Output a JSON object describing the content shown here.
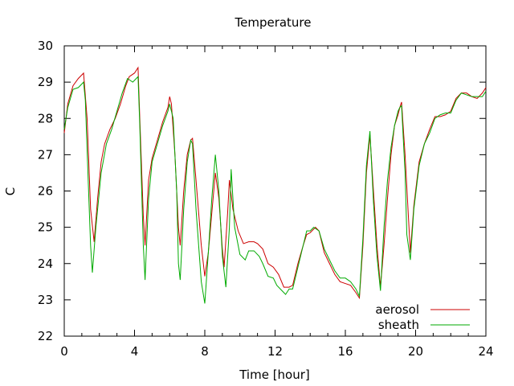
{
  "chart_data": {
    "type": "line",
    "title": "Temperature",
    "xlabel": "Time [hour]",
    "ylabel": "C",
    "xlim": [
      0,
      24
    ],
    "ylim": [
      22,
      30
    ],
    "xticks": [
      0,
      4,
      8,
      12,
      16,
      20,
      24
    ],
    "yticks": [
      22,
      23,
      24,
      25,
      26,
      27,
      28,
      29,
      30
    ],
    "grid": false,
    "legend_position": "bottom-right",
    "series": [
      {
        "name": "aerosol",
        "color": "#cc0000",
        "points": [
          [
            0,
            27.6
          ],
          [
            0.2,
            28.4
          ],
          [
            0.5,
            28.9
          ],
          [
            0.8,
            29.1
          ],
          [
            1.1,
            29.25
          ],
          [
            1.3,
            28.0
          ],
          [
            1.5,
            25.5
          ],
          [
            1.7,
            24.6
          ],
          [
            1.9,
            25.8
          ],
          [
            2.1,
            26.8
          ],
          [
            2.3,
            27.3
          ],
          [
            2.6,
            27.7
          ],
          [
            2.9,
            28.0
          ],
          [
            3.2,
            28.4
          ],
          [
            3.5,
            28.9
          ],
          [
            3.7,
            29.15
          ],
          [
            4.0,
            29.25
          ],
          [
            4.2,
            29.4
          ],
          [
            4.3,
            28.0
          ],
          [
            4.5,
            25.3
          ],
          [
            4.6,
            24.5
          ],
          [
            4.8,
            26.3
          ],
          [
            5.0,
            26.9
          ],
          [
            5.3,
            27.4
          ],
          [
            5.6,
            27.9
          ],
          [
            5.9,
            28.3
          ],
          [
            6.0,
            28.6
          ],
          [
            6.1,
            28.4
          ],
          [
            6.3,
            27.0
          ],
          [
            6.5,
            25.0
          ],
          [
            6.6,
            24.5
          ],
          [
            6.8,
            26.0
          ],
          [
            7.0,
            27.0
          ],
          [
            7.2,
            27.4
          ],
          [
            7.3,
            27.45
          ],
          [
            7.5,
            26.3
          ],
          [
            7.8,
            24.5
          ],
          [
            8.0,
            23.65
          ],
          [
            8.2,
            24.3
          ],
          [
            8.4,
            25.4
          ],
          [
            8.6,
            26.5
          ],
          [
            8.8,
            25.8
          ],
          [
            9.0,
            24.4
          ],
          [
            9.1,
            23.9
          ],
          [
            9.3,
            25.4
          ],
          [
            9.4,
            26.3
          ],
          [
            9.6,
            25.5
          ],
          [
            9.9,
            24.9
          ],
          [
            10.2,
            24.55
          ],
          [
            10.5,
            24.6
          ],
          [
            10.8,
            24.6
          ],
          [
            11.0,
            24.55
          ],
          [
            11.3,
            24.4
          ],
          [
            11.6,
            24.0
          ],
          [
            11.9,
            23.9
          ],
          [
            12.2,
            23.7
          ],
          [
            12.5,
            23.35
          ],
          [
            12.8,
            23.35
          ],
          [
            13.0,
            23.4
          ],
          [
            13.3,
            24.0
          ],
          [
            13.6,
            24.5
          ],
          [
            13.8,
            24.8
          ],
          [
            14.0,
            24.85
          ],
          [
            14.3,
            25.0
          ],
          [
            14.5,
            24.9
          ],
          [
            14.8,
            24.3
          ],
          [
            15.1,
            24.0
          ],
          [
            15.4,
            23.7
          ],
          [
            15.7,
            23.5
          ],
          [
            16.0,
            23.45
          ],
          [
            16.3,
            23.4
          ],
          [
            16.6,
            23.2
          ],
          [
            16.8,
            23.05
          ],
          [
            17.0,
            24.5
          ],
          [
            17.2,
            26.5
          ],
          [
            17.4,
            27.55
          ],
          [
            17.6,
            26.0
          ],
          [
            17.8,
            24.5
          ],
          [
            18.0,
            23.35
          ],
          [
            18.2,
            24.5
          ],
          [
            18.4,
            25.8
          ],
          [
            18.6,
            27.0
          ],
          [
            18.8,
            27.8
          ],
          [
            19.0,
            28.1
          ],
          [
            19.1,
            28.3
          ],
          [
            19.2,
            28.45
          ],
          [
            19.4,
            27.0
          ],
          [
            19.6,
            25.2
          ],
          [
            19.7,
            24.3
          ],
          [
            19.9,
            25.6
          ],
          [
            20.2,
            26.8
          ],
          [
            20.5,
            27.3
          ],
          [
            20.8,
            27.7
          ],
          [
            21.1,
            28.05
          ],
          [
            21.4,
            28.05
          ],
          [
            21.7,
            28.1
          ],
          [
            22.0,
            28.2
          ],
          [
            22.3,
            28.55
          ],
          [
            22.6,
            28.7
          ],
          [
            22.9,
            28.7
          ],
          [
            23.2,
            28.6
          ],
          [
            23.5,
            28.55
          ],
          [
            23.8,
            28.7
          ],
          [
            24.0,
            28.85
          ]
        ]
      },
      {
        "name": "sheath",
        "color": "#00aa00",
        "points": [
          [
            0,
            27.7
          ],
          [
            0.2,
            28.3
          ],
          [
            0.5,
            28.8
          ],
          [
            0.8,
            28.85
          ],
          [
            1.1,
            29.0
          ],
          [
            1.2,
            28.5
          ],
          [
            1.4,
            25.8
          ],
          [
            1.5,
            24.5
          ],
          [
            1.6,
            23.75
          ],
          [
            1.8,
            25.0
          ],
          [
            2.1,
            26.5
          ],
          [
            2.4,
            27.3
          ],
          [
            2.7,
            27.7
          ],
          [
            3.0,
            28.2
          ],
          [
            3.3,
            28.7
          ],
          [
            3.6,
            29.1
          ],
          [
            3.9,
            29.0
          ],
          [
            4.2,
            29.15
          ],
          [
            4.3,
            27.8
          ],
          [
            4.5,
            24.5
          ],
          [
            4.6,
            23.55
          ],
          [
            4.8,
            25.8
          ],
          [
            5.0,
            26.8
          ],
          [
            5.3,
            27.3
          ],
          [
            5.6,
            27.8
          ],
          [
            5.9,
            28.2
          ],
          [
            6.0,
            28.4
          ],
          [
            6.2,
            28.0
          ],
          [
            6.4,
            26.0
          ],
          [
            6.5,
            24.0
          ],
          [
            6.6,
            23.55
          ],
          [
            6.8,
            25.5
          ],
          [
            7.0,
            26.8
          ],
          [
            7.2,
            27.4
          ],
          [
            7.3,
            27.3
          ],
          [
            7.5,
            25.5
          ],
          [
            7.8,
            23.5
          ],
          [
            8.0,
            22.9
          ],
          [
            8.2,
            24.3
          ],
          [
            8.4,
            25.8
          ],
          [
            8.6,
            27.0
          ],
          [
            8.8,
            26.0
          ],
          [
            9.0,
            24.2
          ],
          [
            9.2,
            23.35
          ],
          [
            9.4,
            25.0
          ],
          [
            9.5,
            26.6
          ],
          [
            9.7,
            25.0
          ],
          [
            10.0,
            24.25
          ],
          [
            10.3,
            24.1
          ],
          [
            10.5,
            24.35
          ],
          [
            10.8,
            24.35
          ],
          [
            11.1,
            24.2
          ],
          [
            11.3,
            24.0
          ],
          [
            11.6,
            23.65
          ],
          [
            11.9,
            23.6
          ],
          [
            12.1,
            23.4
          ],
          [
            12.4,
            23.25
          ],
          [
            12.6,
            23.15
          ],
          [
            12.8,
            23.3
          ],
          [
            13.0,
            23.3
          ],
          [
            13.3,
            23.9
          ],
          [
            13.6,
            24.5
          ],
          [
            13.8,
            24.9
          ],
          [
            14.0,
            24.9
          ],
          [
            14.2,
            25.0
          ],
          [
            14.5,
            24.9
          ],
          [
            14.8,
            24.4
          ],
          [
            15.1,
            24.1
          ],
          [
            15.4,
            23.8
          ],
          [
            15.7,
            23.6
          ],
          [
            16.0,
            23.6
          ],
          [
            16.3,
            23.5
          ],
          [
            16.6,
            23.3
          ],
          [
            16.8,
            23.1
          ],
          [
            17.0,
            24.7
          ],
          [
            17.2,
            26.7
          ],
          [
            17.4,
            27.65
          ],
          [
            17.6,
            25.7
          ],
          [
            17.8,
            24.2
          ],
          [
            18.0,
            23.25
          ],
          [
            18.2,
            25.0
          ],
          [
            18.4,
            26.3
          ],
          [
            18.6,
            27.2
          ],
          [
            18.8,
            27.8
          ],
          [
            19.0,
            28.2
          ],
          [
            19.1,
            28.3
          ],
          [
            19.2,
            28.35
          ],
          [
            19.4,
            26.5
          ],
          [
            19.5,
            24.8
          ],
          [
            19.7,
            24.1
          ],
          [
            19.9,
            25.5
          ],
          [
            20.2,
            26.7
          ],
          [
            20.5,
            27.3
          ],
          [
            20.8,
            27.6
          ],
          [
            21.1,
            28.0
          ],
          [
            21.4,
            28.1
          ],
          [
            21.7,
            28.15
          ],
          [
            22.0,
            28.15
          ],
          [
            22.3,
            28.5
          ],
          [
            22.6,
            28.7
          ],
          [
            22.9,
            28.65
          ],
          [
            23.2,
            28.6
          ],
          [
            23.5,
            28.6
          ],
          [
            23.8,
            28.6
          ],
          [
            24.0,
            28.75
          ]
        ]
      }
    ]
  }
}
